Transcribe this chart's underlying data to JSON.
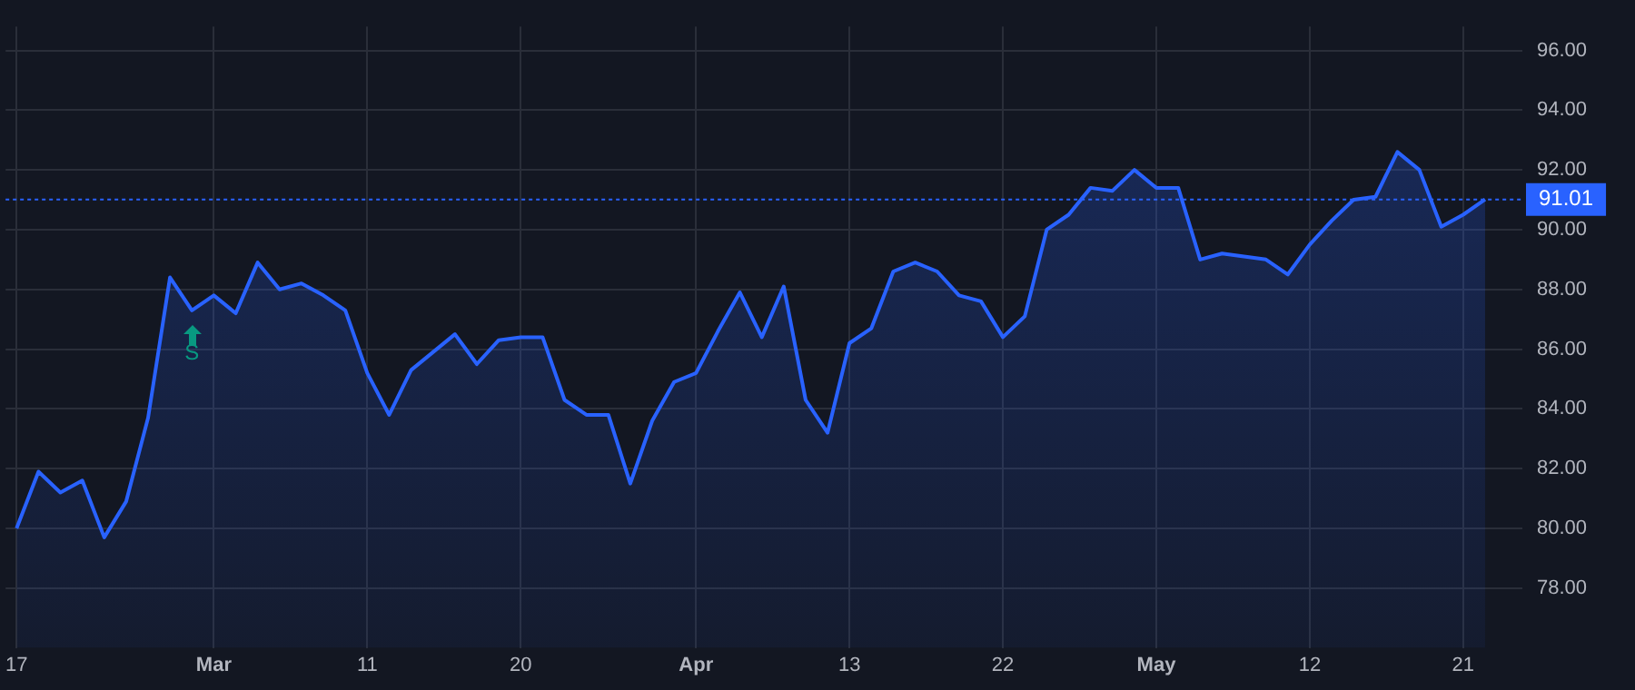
{
  "chart_data": {
    "type": "area",
    "categories": [
      "17",
      null,
      null,
      null,
      null,
      null,
      null,
      null,
      null,
      "Mar",
      null,
      null,
      null,
      null,
      null,
      null,
      "11",
      null,
      null,
      null,
      null,
      null,
      null,
      "20",
      null,
      null,
      null,
      null,
      null,
      null,
      null,
      "Apr",
      null,
      null,
      null,
      null,
      null,
      null,
      "13",
      null,
      null,
      null,
      null,
      null,
      null,
      "22",
      null,
      null,
      null,
      null,
      null,
      null,
      "May",
      null,
      null,
      null,
      null,
      null,
      null,
      "12",
      null,
      null,
      null,
      null,
      null,
      null,
      "21",
      null
    ],
    "series": [
      {
        "color": "#2962ff",
        "values": [
          80.0,
          81.9,
          81.2,
          81.6,
          79.7,
          80.9,
          83.7,
          88.4,
          87.3,
          87.8,
          87.2,
          88.9,
          88.0,
          88.2,
          87.8,
          87.3,
          85.2,
          83.8,
          85.3,
          85.9,
          86.5,
          85.5,
          86.3,
          86.4,
          86.4,
          84.3,
          83.8,
          83.8,
          81.5,
          83.6,
          84.9,
          85.2,
          86.6,
          87.9,
          86.4,
          88.1,
          84.3,
          83.2,
          86.2,
          86.7,
          88.6,
          88.9,
          88.6,
          87.8,
          87.6,
          86.4,
          87.1,
          90.0,
          90.5,
          91.4,
          91.3,
          92.0,
          91.4,
          91.4,
          89.0,
          89.2,
          89.1,
          89.0,
          88.5,
          89.5,
          90.3,
          91.0,
          91.1,
          92.6,
          92.0,
          90.1,
          90.5,
          91.01
        ]
      }
    ],
    "ylim": [
      76.0,
      96.8
    ],
    "yticks": [
      {
        "value": 78,
        "label": "78.00"
      },
      {
        "value": 80,
        "label": "80.00"
      },
      {
        "value": 82,
        "label": "82.00"
      },
      {
        "value": 84,
        "label": "84.00"
      },
      {
        "value": 86,
        "label": "86.00"
      },
      {
        "value": 88,
        "label": "88.00"
      },
      {
        "value": 90,
        "label": "90.00"
      },
      {
        "value": 92,
        "label": "92.00"
      },
      {
        "value": 94,
        "label": "94.00"
      },
      {
        "value": 96,
        "label": "96.00"
      }
    ],
    "ref_lines": [
      {
        "axis": "y",
        "value": 91.01,
        "label": "91.01",
        "color": "#2962ff",
        "line_style": "dotted"
      }
    ],
    "annotations": [
      "S"
    ],
    "grid": true,
    "marker": "none",
    "line_style": "solid"
  }
}
